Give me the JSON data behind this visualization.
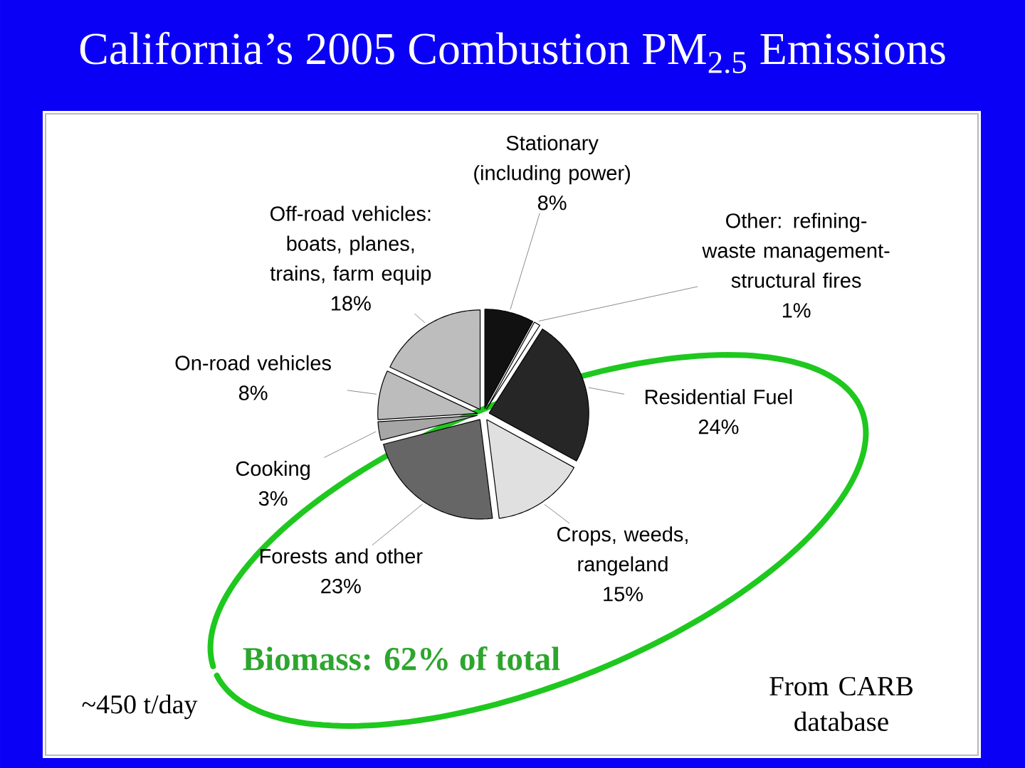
{
  "chart_data": {
    "type": "pie",
    "title": "California’s 2005 Combustion PM$_{2.5}$ Emissions",
    "categories": [
      "Stationary (including power)",
      "Other: refining-waste management-structural fires",
      "Residential Fuel",
      "Crops, weeds, rangeland",
      "Forests and other",
      "Cooking",
      "On-road vehicles",
      "Off-road vehicles: boats, planes, trains, farm equip"
    ],
    "values": [
      8,
      1,
      24,
      15,
      23,
      3,
      8,
      18
    ],
    "value_labels": [
      "8%",
      "1%",
      "24%",
      "15%",
      "23%",
      "3%",
      "8%",
      "18%"
    ],
    "colors": [
      "#111111",
      "#ffffff",
      "#262626",
      "#e0e0e0",
      "#666666",
      "#a6a6a6",
      "#bcbcbc",
      "#bdbdbd"
    ],
    "annotations": [
      "Biomass: 62% of total",
      "~450 t/day",
      "From CARB database"
    ]
  }
}
